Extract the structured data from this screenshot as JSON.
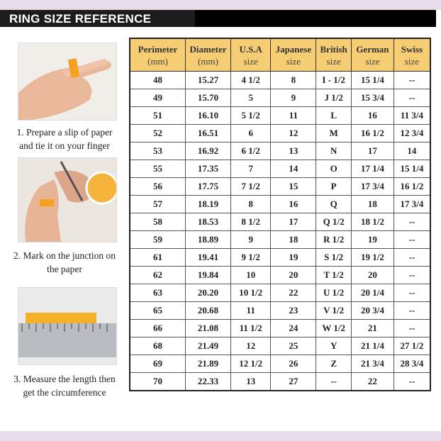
{
  "title": "RING SIZE REFERENCE",
  "steps": [
    {
      "line1": "1. Prepare a slip of paper",
      "line2": "and tie it on your finger"
    },
    {
      "line1": "2. Mark on the junction on",
      "line2": "the paper"
    },
    {
      "line1": "3. Measure the length then",
      "line2": "get the circumference"
    }
  ],
  "colors": {
    "header_fill": "#f7cd74",
    "title_bar": "#000000",
    "band": "#e6dcea"
  },
  "table": {
    "headers": [
      {
        "main": "Perimeter",
        "sub": "(mm)"
      },
      {
        "main": "Diameter",
        "sub": "(mm)"
      },
      {
        "main": "U.S.A",
        "sub": "size"
      },
      {
        "main": "Japanese",
        "sub": "size"
      },
      {
        "main": "British",
        "sub": "size"
      },
      {
        "main": "German",
        "sub": "size"
      },
      {
        "main": "Swiss",
        "sub": "size"
      }
    ],
    "rows": [
      [
        "48",
        "15.27",
        "4 1/2",
        "8",
        "I - 1/2",
        "15 1/4",
        "--"
      ],
      [
        "49",
        "15.70",
        "5",
        "9",
        "J 1/2",
        "15 3/4",
        "--"
      ],
      [
        "51",
        "16.10",
        "5 1/2",
        "11",
        "L",
        "16",
        "11 3/4"
      ],
      [
        "52",
        "16.51",
        "6",
        "12",
        "M",
        "16 1/2",
        "12 3/4"
      ],
      [
        "53",
        "16.92",
        "6 1/2",
        "13",
        "N",
        "17",
        "14"
      ],
      [
        "55",
        "17.35",
        "7",
        "14",
        "O",
        "17 1/4",
        "15 1/4"
      ],
      [
        "56",
        "17.75",
        "7 1/2",
        "15",
        "P",
        "17 3/4",
        "16 1/2"
      ],
      [
        "57",
        "18.19",
        "8",
        "16",
        "Q",
        "18",
        "17 3/4"
      ],
      [
        "58",
        "18.53",
        "8 1/2",
        "17",
        "Q 1/2",
        "18 1/2",
        "--"
      ],
      [
        "59",
        "18.89",
        "9",
        "18",
        "R 1/2",
        "19",
        "--"
      ],
      [
        "61",
        "19.41",
        "9 1/2",
        "19",
        "S 1/2",
        "19 1/2",
        "--"
      ],
      [
        "62",
        "19.84",
        "10",
        "20",
        "T 1/2",
        "20",
        "--"
      ],
      [
        "63",
        "20.20",
        "10 1/2",
        "22",
        "U 1/2",
        "20 1/4",
        "--"
      ],
      [
        "65",
        "20.68",
        "11",
        "23",
        "V 1/2",
        "20 3/4",
        "--"
      ],
      [
        "66",
        "21.08",
        "11 1/2",
        "24",
        "W 1/2",
        "21",
        "--"
      ],
      [
        "68",
        "21.49",
        "12",
        "25",
        "Y",
        "21 1/4",
        "27 1/2"
      ],
      [
        "69",
        "21.89",
        "12 1/2",
        "26",
        "Z",
        "21 3/4",
        "28 3/4"
      ],
      [
        "70",
        "22.33",
        "13",
        "27",
        "--",
        "22",
        "--"
      ]
    ]
  }
}
